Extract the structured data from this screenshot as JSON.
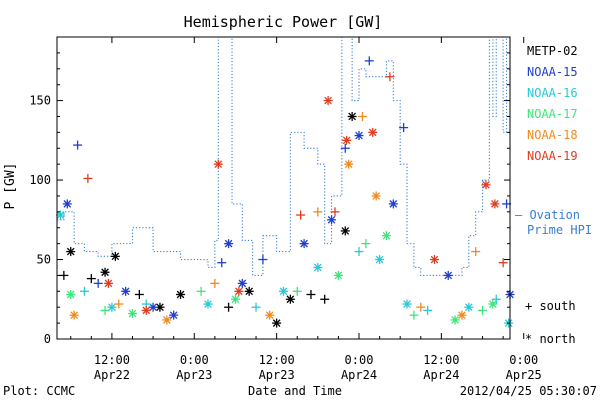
{
  "chart_data": {
    "type": "scatter",
    "title": "Hemispheric Power [GW]",
    "ylabel": "P [GW]",
    "xlabel": "Date and Time",
    "ylim": [
      0,
      190
    ],
    "xlim_hours": [
      -44,
      22
    ],
    "yticks": [
      {
        "v": 0,
        "label": "0"
      },
      {
        "v": 50,
        "label": "50"
      },
      {
        "v": 100,
        "label": "100"
      },
      {
        "v": 150,
        "label": "150"
      }
    ],
    "xticks": [
      {
        "v": -36,
        "line1": "12:00",
        "line2": "Apr22"
      },
      {
        "v": -24,
        "line1": "0:00",
        "line2": "Apr23"
      },
      {
        "v": -12,
        "line1": "12:00",
        "line2": "Apr23"
      },
      {
        "v": 0,
        "line1": "0:00",
        "line2": "Apr24"
      },
      {
        "v": 12,
        "line1": "12:00",
        "line2": "Apr24"
      },
      {
        "v": 24,
        "line1": "0:00",
        "line2": "Apr25"
      }
    ],
    "legend": {
      "placement": "right",
      "satellites": [
        {
          "name": "METP-02",
          "color": "#000000"
        },
        {
          "name": "NOAA-15",
          "color": "#1f3fd0"
        },
        {
          "name": "NOAA-16",
          "color": "#28c8d8"
        },
        {
          "name": "NOAA-17",
          "color": "#3ce67a"
        },
        {
          "name": "NOAA-18",
          "color": "#f08a1e"
        },
        {
          "name": "NOAA-19",
          "color": "#e03c1e"
        }
      ],
      "ovation_line1": "— Ovation",
      "ovation_line2": "Prime HPI",
      "ovation_color": "#3a7fd5",
      "south_label": "+ south",
      "north_label": "* north"
    },
    "ovation_series": [
      [
        -44,
        75
      ],
      [
        -43,
        80
      ],
      [
        -41.5,
        60
      ],
      [
        -40,
        55
      ],
      [
        -38,
        52
      ],
      [
        -36,
        60
      ],
      [
        -34,
        60
      ],
      [
        -33,
        70
      ],
      [
        -32,
        70
      ],
      [
        -30,
        55
      ],
      [
        -28,
        55
      ],
      [
        -26,
        50
      ],
      [
        -24,
        50
      ],
      [
        -22,
        45
      ],
      [
        -21,
        62
      ],
      [
        -20.5,
        190
      ],
      [
        -19.5,
        190
      ],
      [
        -18.5,
        85
      ],
      [
        -17,
        62
      ],
      [
        -15.5,
        40
      ],
      [
        -14,
        65
      ],
      [
        -13,
        65
      ],
      [
        -12,
        55
      ],
      [
        -10,
        130
      ],
      [
        -8,
        120
      ],
      [
        -6,
        110
      ],
      [
        -5,
        60
      ],
      [
        -4,
        90
      ],
      [
        -2.5,
        190
      ],
      [
        -1,
        150
      ],
      [
        0,
        170
      ],
      [
        1,
        165
      ],
      [
        3,
        165
      ],
      [
        4,
        175
      ],
      [
        5,
        150
      ],
      [
        6,
        110
      ],
      [
        7,
        60
      ],
      [
        8,
        45
      ],
      [
        9,
        40
      ],
      [
        11,
        40
      ],
      [
        13,
        40
      ],
      [
        15,
        45
      ],
      [
        16,
        65
      ],
      [
        17,
        80
      ],
      [
        18,
        100
      ],
      [
        19,
        190
      ],
      [
        19.5,
        140
      ],
      [
        20,
        190
      ],
      [
        21,
        130
      ],
      [
        21.5,
        190
      ],
      [
        22,
        155
      ]
    ],
    "points": [
      {
        "sat": 0,
        "h": "S",
        "x": -43,
        "y": 40
      },
      {
        "sat": 0,
        "h": "N",
        "x": -42,
        "y": 55
      },
      {
        "sat": 0,
        "h": "S",
        "x": -39,
        "y": 38
      },
      {
        "sat": 0,
        "h": "N",
        "x": -37,
        "y": 42
      },
      {
        "sat": 0,
        "h": "N",
        "x": -35.5,
        "y": 52
      },
      {
        "sat": 0,
        "h": "S",
        "x": -32,
        "y": 28
      },
      {
        "sat": 0,
        "h": "N",
        "x": -29,
        "y": 20
      },
      {
        "sat": 0,
        "h": "N",
        "x": -26,
        "y": 28
      },
      {
        "sat": 0,
        "h": "S",
        "x": -19,
        "y": 20
      },
      {
        "sat": 0,
        "h": "N",
        "x": -16,
        "y": 30
      },
      {
        "sat": 0,
        "h": "N",
        "x": -12,
        "y": 10
      },
      {
        "sat": 0,
        "h": "N",
        "x": -10,
        "y": 25
      },
      {
        "sat": 0,
        "h": "S",
        "x": -7,
        "y": 28
      },
      {
        "sat": 0,
        "h": "S",
        "x": -5,
        "y": 25
      },
      {
        "sat": 0,
        "h": "N",
        "x": -2,
        "y": 68
      },
      {
        "sat": 0,
        "h": "N",
        "x": -1,
        "y": 140
      },
      {
        "sat": 1,
        "h": "N",
        "x": -42.5,
        "y": 85
      },
      {
        "sat": 1,
        "h": "S",
        "x": -41,
        "y": 122
      },
      {
        "sat": 1,
        "h": "S",
        "x": -38,
        "y": 35
      },
      {
        "sat": 1,
        "h": "N",
        "x": -34,
        "y": 30
      },
      {
        "sat": 1,
        "h": "N",
        "x": -30,
        "y": 20
      },
      {
        "sat": 1,
        "h": "N",
        "x": -27,
        "y": 15
      },
      {
        "sat": 1,
        "h": "S",
        "x": -20,
        "y": 48
      },
      {
        "sat": 1,
        "h": "N",
        "x": -19,
        "y": 60
      },
      {
        "sat": 1,
        "h": "N",
        "x": -17,
        "y": 35
      },
      {
        "sat": 1,
        "h": "S",
        "x": -14,
        "y": 50
      },
      {
        "sat": 1,
        "h": "N",
        "x": -8,
        "y": 60
      },
      {
        "sat": 1,
        "h": "N",
        "x": -4,
        "y": 75
      },
      {
        "sat": 1,
        "h": "S",
        "x": -2,
        "y": 120
      },
      {
        "sat": 1,
        "h": "N",
        "x": 0,
        "y": 128
      },
      {
        "sat": 1,
        "h": "S",
        "x": 1.5,
        "y": 175
      },
      {
        "sat": 1,
        "h": "N",
        "x": 5,
        "y": 85
      },
      {
        "sat": 1,
        "h": "S",
        "x": 6.5,
        "y": 133
      },
      {
        "sat": 1,
        "h": "N",
        "x": 13,
        "y": 40
      },
      {
        "sat": 1,
        "h": "S",
        "x": 21.5,
        "y": 85
      },
      {
        "sat": 1,
        "h": "N",
        "x": 22,
        "y": 28
      },
      {
        "sat": 2,
        "h": "N",
        "x": -43.5,
        "y": 78
      },
      {
        "sat": 2,
        "h": "S",
        "x": -40,
        "y": 30
      },
      {
        "sat": 2,
        "h": "N",
        "x": -36,
        "y": 20
      },
      {
        "sat": 2,
        "h": "S",
        "x": -31,
        "y": 22
      },
      {
        "sat": 2,
        "h": "N",
        "x": -22,
        "y": 22
      },
      {
        "sat": 2,
        "h": "S",
        "x": -15,
        "y": 20
      },
      {
        "sat": 2,
        "h": "N",
        "x": -11,
        "y": 30
      },
      {
        "sat": 2,
        "h": "N",
        "x": -6,
        "y": 45
      },
      {
        "sat": 2,
        "h": "S",
        "x": 0,
        "y": 55
      },
      {
        "sat": 2,
        "h": "N",
        "x": 3,
        "y": 50
      },
      {
        "sat": 2,
        "h": "N",
        "x": 7,
        "y": 22
      },
      {
        "sat": 2,
        "h": "S",
        "x": 10,
        "y": 18
      },
      {
        "sat": 2,
        "h": "N",
        "x": 16,
        "y": 20
      },
      {
        "sat": 2,
        "h": "S",
        "x": 20,
        "y": 25
      },
      {
        "sat": 2,
        "h": "N",
        "x": 21.8,
        "y": 10
      },
      {
        "sat": 3,
        "h": "N",
        "x": -42,
        "y": 28
      },
      {
        "sat": 3,
        "h": "S",
        "x": -37,
        "y": 18
      },
      {
        "sat": 3,
        "h": "N",
        "x": -33,
        "y": 16
      },
      {
        "sat": 3,
        "h": "S",
        "x": -23,
        "y": 30
      },
      {
        "sat": 3,
        "h": "N",
        "x": -18,
        "y": 25
      },
      {
        "sat": 3,
        "h": "S",
        "x": -9,
        "y": 30
      },
      {
        "sat": 3,
        "h": "N",
        "x": -3,
        "y": 40
      },
      {
        "sat": 3,
        "h": "S",
        "x": 1,
        "y": 60
      },
      {
        "sat": 3,
        "h": "N",
        "x": 4,
        "y": 65
      },
      {
        "sat": 3,
        "h": "S",
        "x": 8,
        "y": 15
      },
      {
        "sat": 3,
        "h": "N",
        "x": 14,
        "y": 12
      },
      {
        "sat": 3,
        "h": "S",
        "x": 18,
        "y": 18
      },
      {
        "sat": 3,
        "h": "N",
        "x": 19.5,
        "y": 22
      },
      {
        "sat": 4,
        "h": "N",
        "x": -41.5,
        "y": 15
      },
      {
        "sat": 4,
        "h": "S",
        "x": -35,
        "y": 22
      },
      {
        "sat": 4,
        "h": "N",
        "x": -28,
        "y": 12
      },
      {
        "sat": 4,
        "h": "S",
        "x": -21,
        "y": 35
      },
      {
        "sat": 4,
        "h": "N",
        "x": -13,
        "y": 15
      },
      {
        "sat": 4,
        "h": "S",
        "x": -6,
        "y": 80
      },
      {
        "sat": 4,
        "h": "N",
        "x": -1.5,
        "y": 110
      },
      {
        "sat": 4,
        "h": "S",
        "x": 0.5,
        "y": 140
      },
      {
        "sat": 4,
        "h": "N",
        "x": 2.5,
        "y": 90
      },
      {
        "sat": 4,
        "h": "S",
        "x": 9,
        "y": 20
      },
      {
        "sat": 4,
        "h": "N",
        "x": 15,
        "y": 15
      },
      {
        "sat": 4,
        "h": "S",
        "x": 17,
        "y": 55
      },
      {
        "sat": 5,
        "h": "S",
        "x": -39.5,
        "y": 101
      },
      {
        "sat": 5,
        "h": "N",
        "x": -36.5,
        "y": 35
      },
      {
        "sat": 5,
        "h": "N",
        "x": -31,
        "y": 18
      },
      {
        "sat": 5,
        "h": "N",
        "x": -20.5,
        "y": 110
      },
      {
        "sat": 5,
        "h": "N",
        "x": -17.5,
        "y": 30
      },
      {
        "sat": 5,
        "h": "S",
        "x": -8.5,
        "y": 78
      },
      {
        "sat": 5,
        "h": "N",
        "x": -4.5,
        "y": 150
      },
      {
        "sat": 5,
        "h": "S",
        "x": -3.5,
        "y": 80
      },
      {
        "sat": 5,
        "h": "N",
        "x": -1.8,
        "y": 125
      },
      {
        "sat": 5,
        "h": "N",
        "x": 2,
        "y": 130
      },
      {
        "sat": 5,
        "h": "S",
        "x": 4.5,
        "y": 165
      },
      {
        "sat": 5,
        "h": "N",
        "x": 11,
        "y": 50
      },
      {
        "sat": 5,
        "h": "N",
        "x": 18.5,
        "y": 97
      },
      {
        "sat": 5,
        "h": "N",
        "x": 19.8,
        "y": 85
      },
      {
        "sat": 5,
        "h": "S",
        "x": 21,
        "y": 48
      }
    ]
  },
  "footer": {
    "plot_label": "Plot: CCMC",
    "timestamp": "2012/04/25 05:30:07"
  }
}
